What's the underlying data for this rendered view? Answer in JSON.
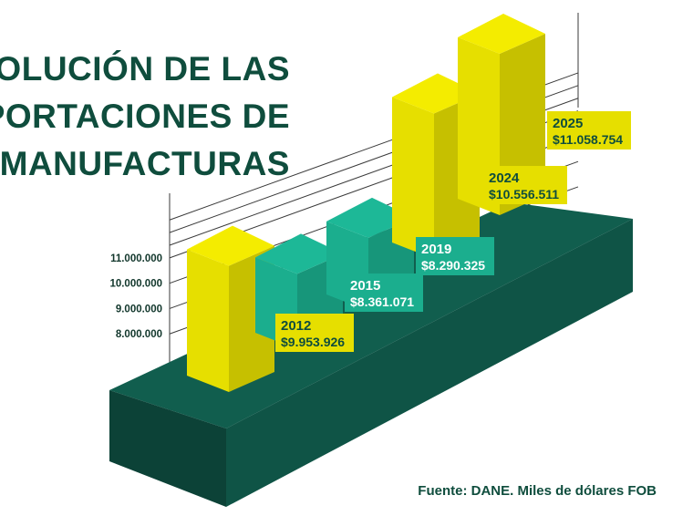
{
  "chart_data": {
    "type": "bar",
    "title": "EVOLUCIÓN DE LAS EXPORTACIONES DE MANUFACTURAS",
    "title_lines": [
      "EVOLUCIÓN DE LAS",
      "EXPORTACIONES DE",
      "MANUFACTURAS"
    ],
    "categories": [
      "2012",
      "2015",
      "2019",
      "2024",
      "2025"
    ],
    "values": [
      9953926,
      8361071,
      8290325,
      10556511,
      11058754
    ],
    "value_labels": [
      "$9.953.926",
      "$8.361.071",
      "$8.290.325",
      "$10.556.511",
      "$11.058.754"
    ],
    "y_ticks": [
      "8.000.000",
      "9.000.000",
      "10.000.000",
      "11.000.000"
    ],
    "ylim": [
      7000000,
      11500000
    ],
    "grid": true,
    "source": "Fuente: DANE. Miles de dólares FOB",
    "colors": {
      "highlight_bar": "#e6df00",
      "regular_bar": "#1bae8e",
      "platform": "#0f5446",
      "title": "#0f4d3d",
      "label_highlight_bg": "#e6df00",
      "label_highlight_text": "#0f4d3d",
      "label_regular_bg": "#1bae8e",
      "label_regular_text": "#ffffff"
    },
    "highlight": [
      true,
      false,
      false,
      true,
      true
    ]
  }
}
